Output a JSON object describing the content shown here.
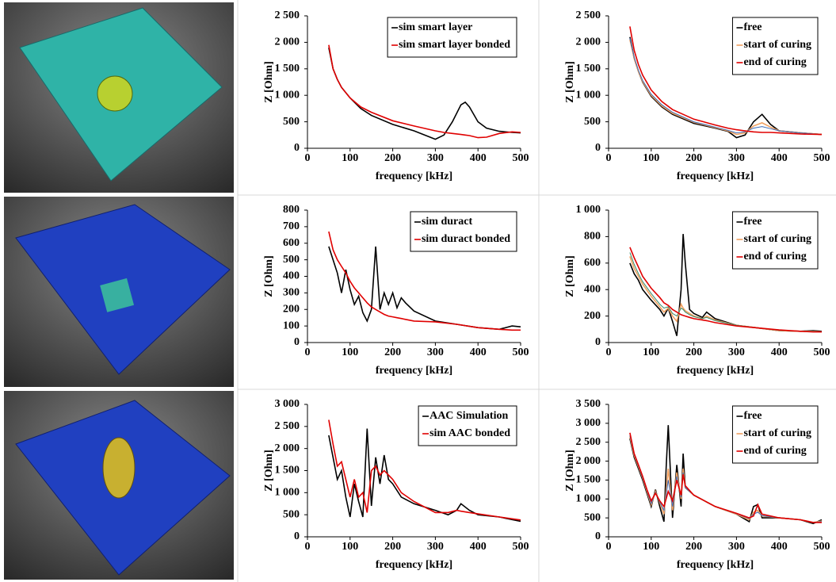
{
  "chart_data": [
    {
      "type": "line",
      "xlabel": "frequency [kHz]",
      "ylabel": "Z [Ohm]",
      "xlim": [
        0,
        500
      ],
      "xticks": [
        0,
        100,
        200,
        300,
        400,
        500
      ],
      "ylim": [
        0,
        2500
      ],
      "yticks": [
        0,
        500,
        {
          "value": 1000,
          "label": "1 000"
        },
        {
          "value": 1500,
          "label": "1 500"
        },
        {
          "value": 2000,
          "label": "2 000"
        },
        {
          "value": 2500,
          "label": "2 500"
        }
      ],
      "x": [
        50,
        60,
        70,
        80,
        100,
        125,
        150,
        200,
        250,
        300,
        320,
        340,
        360,
        370,
        380,
        400,
        420,
        450,
        480,
        500
      ],
      "series": [
        {
          "name": "sim smart layer",
          "color": "#000000",
          "values": [
            1900,
            1500,
            1300,
            1150,
            950,
            750,
            620,
            450,
            330,
            170,
            250,
            500,
            820,
            870,
            780,
            500,
            380,
            320,
            300,
            290
          ]
        },
        {
          "name": "sim smart layer bonded",
          "color": "#e00000",
          "values": [
            1950,
            1500,
            1300,
            1150,
            950,
            780,
            680,
            520,
            420,
            330,
            300,
            280,
            260,
            250,
            240,
            200,
            210,
            280,
            310,
            300
          ]
        }
      ]
    },
    {
      "type": "line",
      "xlabel": "frequency [kHz]",
      "ylabel": "Z [Ohm]",
      "xlim": [
        0,
        500
      ],
      "xticks": [
        0,
        100,
        200,
        300,
        400,
        500
      ],
      "ylim": [
        0,
        2500
      ],
      "yticks": [
        0,
        500,
        {
          "value": 1000,
          "label": "1 000"
        },
        {
          "value": 1500,
          "label": "1 500"
        },
        {
          "value": 2000,
          "label": "2 000"
        },
        {
          "value": 2500,
          "label": "2 500"
        }
      ],
      "x": [
        50,
        60,
        70,
        80,
        100,
        125,
        150,
        200,
        250,
        280,
        300,
        320,
        340,
        360,
        380,
        400,
        450,
        500
      ],
      "series": [
        {
          "name": "free",
          "color": "#000000",
          "values": [
            2100,
            1700,
            1450,
            1250,
            980,
            780,
            640,
            470,
            380,
            320,
            200,
            250,
            500,
            640,
            450,
            330,
            290,
            260
          ]
        },
        {
          "name": "start of curing",
          "color": "#f0a060",
          "values": [
            2050,
            1700,
            1450,
            1260,
            1000,
            800,
            660,
            490,
            390,
            330,
            260,
            290,
            420,
            480,
            400,
            330,
            290,
            260
          ]
        },
        {
          "color": "#3a6ab8",
          "values": [
            2080,
            1720,
            1470,
            1280,
            1020,
            820,
            680,
            500,
            400,
            340,
            290,
            310,
            380,
            410,
            370,
            330,
            290,
            260
          ]
        },
        {
          "name": "end of curing",
          "color": "#e00000",
          "values": [
            2300,
            1850,
            1580,
            1380,
            1100,
            880,
            730,
            550,
            440,
            380,
            350,
            330,
            310,
            300,
            300,
            290,
            270,
            260
          ]
        }
      ]
    },
    {
      "type": "line",
      "xlabel": "frequency [kHz]",
      "ylabel": "Z [Ohm]",
      "xlim": [
        0,
        500
      ],
      "xticks": [
        0,
        100,
        200,
        300,
        400,
        500
      ],
      "ylim": [
        0,
        800
      ],
      "yticks": [
        0,
        100,
        200,
        300,
        400,
        500,
        600,
        700,
        800
      ],
      "x": [
        50,
        60,
        70,
        80,
        90,
        100,
        110,
        120,
        130,
        140,
        150,
        160,
        170,
        180,
        190,
        200,
        210,
        220,
        230,
        250,
        300,
        350,
        400,
        450,
        480,
        500
      ],
      "series": [
        {
          "name": "sim duract",
          "color": "#000000",
          "values": [
            580,
            500,
            420,
            300,
            440,
            320,
            230,
            280,
            180,
            130,
            200,
            580,
            200,
            300,
            230,
            300,
            210,
            270,
            240,
            190,
            130,
            110,
            90,
            80,
            100,
            95
          ]
        },
        {
          "name": "sim duract bonded",
          "color": "#e00000",
          "values": [
            670,
            560,
            500,
            460,
            420,
            370,
            330,
            300,
            270,
            240,
            215,
            200,
            185,
            170,
            160,
            155,
            150,
            145,
            140,
            130,
            125,
            110,
            90,
            80,
            75,
            75
          ]
        }
      ]
    },
    {
      "type": "line",
      "xlabel": "frequency [kHz]",
      "ylabel": "Z [Ohm]",
      "xlim": [
        0,
        500
      ],
      "xticks": [
        0,
        100,
        200,
        300,
        400,
        500
      ],
      "ylim": [
        0,
        1000
      ],
      "yticks": [
        0,
        200,
        400,
        600,
        800,
        {
          "value": 1000,
          "label": "1 000"
        }
      ],
      "x": [
        50,
        60,
        70,
        80,
        100,
        120,
        130,
        140,
        150,
        160,
        170,
        175,
        180,
        190,
        200,
        220,
        230,
        250,
        300,
        350,
        400,
        450,
        480,
        500
      ],
      "series": [
        {
          "name": "free",
          "color": "#000000",
          "values": [
            600,
            520,
            470,
            400,
            320,
            250,
            200,
            260,
            160,
            50,
            400,
            820,
            600,
            250,
            220,
            190,
            230,
            180,
            130,
            110,
            90,
            85,
            90,
            85
          ]
        },
        {
          "name": "start of curing",
          "color": "#f0a060",
          "values": [
            650,
            560,
            500,
            440,
            350,
            270,
            230,
            260,
            200,
            160,
            290,
            260,
            240,
            220,
            200,
            180,
            200,
            170,
            130,
            110,
            90,
            85,
            85,
            80
          ]
        },
        {
          "color": "#3a8a6a",
          "values": [
            680,
            590,
            520,
            460,
            370,
            290,
            260,
            270,
            220,
            200,
            260,
            250,
            230,
            210,
            195,
            180,
            190,
            165,
            130,
            110,
            92,
            85,
            85,
            80
          ]
        },
        {
          "name": "end of curing",
          "color": "#e00000",
          "values": [
            720,
            640,
            570,
            500,
            410,
            340,
            300,
            280,
            250,
            230,
            210,
            205,
            200,
            190,
            180,
            170,
            165,
            150,
            125,
            110,
            95,
            85,
            80,
            80
          ]
        }
      ]
    },
    {
      "type": "line",
      "xlabel": "frequency [kHz]",
      "ylabel": "Z [Ohm]",
      "xlim": [
        0,
        500
      ],
      "xticks": [
        0,
        100,
        200,
        300,
        400,
        500
      ],
      "ylim": [
        0,
        3000
      ],
      "yticks": [
        0,
        500,
        {
          "value": 1000,
          "label": "1 000"
        },
        {
          "value": 1500,
          "label": "1 500"
        },
        {
          "value": 2000,
          "label": "2 000"
        },
        {
          "value": 2500,
          "label": "2 500"
        },
        {
          "value": 3000,
          "label": "3 000"
        }
      ],
      "x": [
        50,
        60,
        70,
        80,
        90,
        100,
        110,
        120,
        130,
        140,
        150,
        160,
        170,
        180,
        190,
        200,
        220,
        250,
        300,
        330,
        350,
        360,
        380,
        400,
        450,
        500
      ],
      "series": [
        {
          "name": "AAC Simulation",
          "color": "#000000",
          "values": [
            2300,
            1800,
            1300,
            1500,
            900,
            450,
            1200,
            800,
            450,
            2450,
            700,
            1800,
            1200,
            1850,
            1300,
            1200,
            900,
            750,
            600,
            500,
            600,
            750,
            600,
            500,
            450,
            350
          ]
        },
        {
          "name": "sim AAC bonded",
          "color": "#e00000",
          "values": [
            2650,
            2100,
            1600,
            1700,
            1300,
            900,
            1300,
            900,
            1000,
            550,
            1500,
            1600,
            1400,
            1500,
            1400,
            1300,
            1000,
            800,
            550,
            550,
            600,
            580,
            550,
            520,
            450,
            380
          ]
        }
      ]
    },
    {
      "type": "line",
      "xlabel": "frequency [kHz]",
      "ylabel": "Z [Ohm]",
      "xlim": [
        0,
        500
      ],
      "xticks": [
        0,
        100,
        200,
        300,
        400,
        500
      ],
      "ylim": [
        0,
        3500
      ],
      "yticks": [
        0,
        500,
        {
          "value": 1000,
          "label": "1 000"
        },
        {
          "value": 1500,
          "label": "1 500"
        },
        {
          "value": 2000,
          "label": "2 000"
        },
        {
          "value": 2500,
          "label": "2 500"
        },
        {
          "value": 3000,
          "label": "3 000"
        },
        {
          "value": 3500,
          "label": "3 500"
        }
      ],
      "x": [
        50,
        60,
        70,
        80,
        90,
        100,
        110,
        120,
        130,
        135,
        140,
        150,
        160,
        170,
        175,
        180,
        200,
        250,
        300,
        330,
        340,
        350,
        360,
        400,
        450,
        480,
        500
      ],
      "series": [
        {
          "name": "free",
          "color": "#000000",
          "values": [
            2600,
            2100,
            1800,
            1500,
            1150,
            800,
            1250,
            800,
            400,
            1800,
            2950,
            500,
            1900,
            800,
            2200,
            1300,
            1100,
            800,
            600,
            400,
            800,
            850,
            500,
            500,
            450,
            350,
            450
          ]
        },
        {
          "name": "start of curing",
          "color": "#f0a060",
          "values": [
            2650,
            2150,
            1850,
            1550,
            1200,
            850,
            1200,
            900,
            600,
            1200,
            1800,
            700,
            1700,
            1000,
            1800,
            1300,
            1100,
            800,
            600,
            450,
            650,
            700,
            550,
            500,
            450,
            380,
            420
          ]
        },
        {
          "color": "#3a6ab8",
          "values": [
            2680,
            2170,
            1870,
            1560,
            1220,
            880,
            1180,
            920,
            700,
            1100,
            1500,
            800,
            1600,
            1050,
            1700,
            1300,
            1100,
            800,
            610,
            480,
            600,
            650,
            560,
            500,
            450,
            380,
            400
          ]
        },
        {
          "name": "end of curing",
          "color": "#e00000",
          "values": [
            2750,
            2200,
            1900,
            1600,
            1250,
            950,
            1150,
            950,
            800,
            1000,
            1200,
            950,
            1500,
            1100,
            1650,
            1350,
            1100,
            800,
            620,
            500,
            550,
            850,
            600,
            500,
            450,
            380,
            380
          ]
        }
      ]
    }
  ]
}
